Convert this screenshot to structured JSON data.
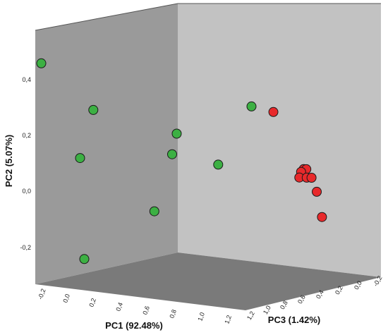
{
  "chart_data": {
    "type": "scatter",
    "title": "",
    "xlabel": "PC1 (92.48%)",
    "ylabel": "PC2 (5.07%)",
    "zlabel": "PC3 (1.42%)",
    "grid": false,
    "legend": "none",
    "colors": {
      "back_wall": "#c2c2c2",
      "left_wall": "#9a9a9a",
      "floor": "#7a7a7a",
      "group_1": "#3cb043",
      "group_2": "#e8292b",
      "marker_edge": "#1a1a1a"
    },
    "ticks": {
      "pc2": [
        "-0,2",
        "0,0",
        "0,2",
        "0,4"
      ],
      "pc1": [
        "-0,2",
        "0,0",
        "0,2",
        "0,4",
        "0,6",
        "0,8",
        "1,0",
        "1,2"
      ],
      "pc3": [
        "1,2",
        "1,0",
        "0,8",
        "0,6",
        "0,4",
        "0,2",
        "0,0",
        "-0,2"
      ]
    },
    "series": [
      {
        "points": [
          {
            "pc1": -0.05,
            "pc2": 0.45,
            "pc3": 0.35
          },
          {
            "pc1": 0.13,
            "pc2": 0.29,
            "pc3": 0.05
          },
          {
            "pc1": 0.55,
            "pc2": 0.2,
            "pc3": 0.25
          },
          {
            "pc1": 0.5,
            "pc2": 0.13,
            "pc3": 0.1
          },
          {
            "pc1": 0.05,
            "pc2": 0.12,
            "pc3": -0.05
          },
          {
            "pc1": 0.73,
            "pc2": 0.09,
            "pc3": 0.2
          },
          {
            "pc1": 0.38,
            "pc2": -0.07,
            "pc3": -0.1
          },
          {
            "pc1": 0.05,
            "pc2": -0.24,
            "pc3": -0.15
          },
          {
            "pc1": 0.95,
            "pc2": 0.29,
            "pc3": 0.55
          }
        ]
      },
      {
        "points": [
          {
            "pc1": 1.05,
            "pc2": 0.27,
            "pc3": 0.55
          },
          {
            "pc1": 1.15,
            "pc2": 0.07,
            "pc3": 0.35
          },
          {
            "pc1": 1.16,
            "pc2": 0.07,
            "pc3": 0.34
          },
          {
            "pc1": 1.14,
            "pc2": 0.06,
            "pc3": 0.36
          },
          {
            "pc1": 1.13,
            "pc2": 0.04,
            "pc3": 0.35
          },
          {
            "pc1": 1.16,
            "pc2": 0.04,
            "pc3": 0.33
          },
          {
            "pc1": 1.18,
            "pc2": 0.04,
            "pc3": 0.32
          },
          {
            "pc1": 1.2,
            "pc2": -0.01,
            "pc3": 0.3
          },
          {
            "pc1": 1.22,
            "pc2": -0.1,
            "pc3": 0.28
          }
        ]
      }
    ]
  }
}
